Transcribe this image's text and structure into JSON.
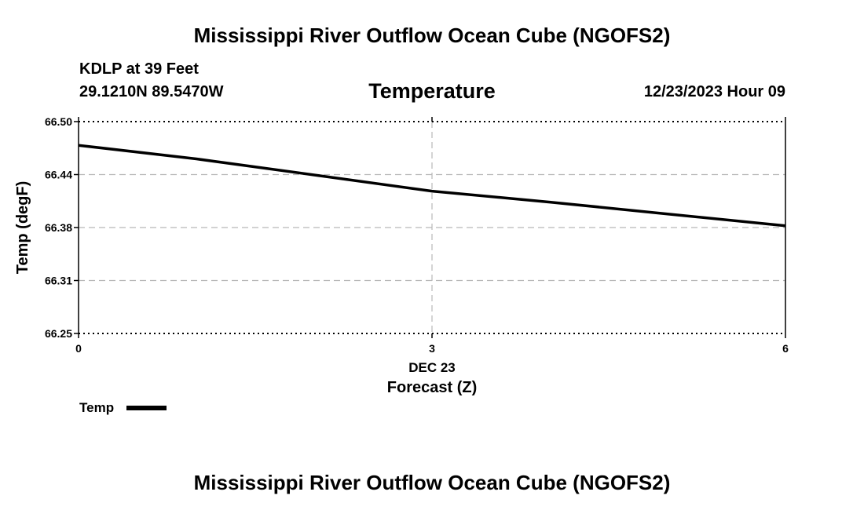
{
  "header": {
    "title": "Mississippi River Outflow Ocean Cube (NGOFS2)",
    "station": "KDLP at 39 Feet",
    "coords": "29.1210N  89.5470W",
    "variable": "Temperature",
    "datetime": "12/23/2023 Hour 09"
  },
  "footer": {
    "title": "Mississippi River Outflow Ocean Cube (NGOFS2)"
  },
  "chart_data": {
    "type": "line",
    "title": "Temperature",
    "xlabel": "Forecast (Z)",
    "xlabel_date": "DEC 23",
    "ylabel": "Temp (degF)",
    "xlim": [
      0,
      6
    ],
    "ylim": [
      66.25,
      66.5
    ],
    "x_ticks": [
      0,
      3,
      6
    ],
    "x_tick_labels": [
      "0",
      "3",
      "6"
    ],
    "y_ticks": [
      66.25,
      66.3125,
      66.375,
      66.4375,
      66.5
    ],
    "y_tick_labels": [
      "66.25",
      "66.31",
      "66.38",
      "66.44",
      "66.50"
    ],
    "grid": true,
    "legend": {
      "label": "Temp",
      "position": "bottom-left"
    },
    "series": [
      {
        "name": "Temp",
        "color": "#000000",
        "x": [
          0,
          1,
          2,
          3,
          4,
          5,
          6
        ],
        "y": [
          66.472,
          66.456,
          66.437,
          66.418,
          66.405,
          66.391,
          66.377
        ]
      }
    ]
  }
}
